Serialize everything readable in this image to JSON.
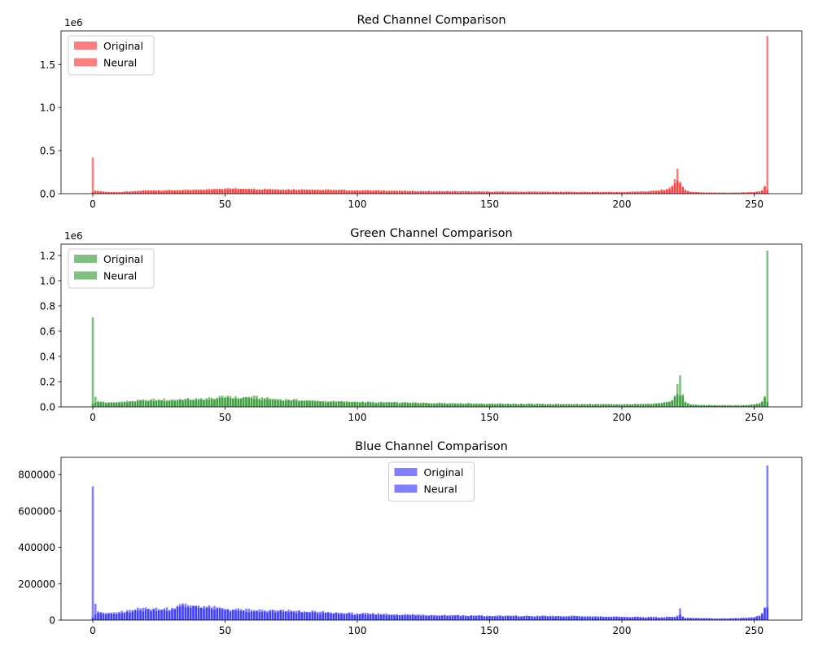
{
  "chart_data": [
    {
      "type": "bar",
      "title": "Red Channel Comparison",
      "xlabel": "",
      "ylabel": "",
      "xlim": [
        -12,
        268
      ],
      "ylim": [
        0,
        1890000
      ],
      "offset_label": "1e6",
      "x_ticks": [
        0,
        50,
        100,
        150,
        200,
        250
      ],
      "y_ticks": [
        0,
        500000,
        1000000,
        1500000
      ],
      "y_tick_labels": [
        "0.0",
        "0.5",
        "1.0",
        "1.5"
      ],
      "legend_position": "upper left",
      "grid": false,
      "series": [
        {
          "name": "Original",
          "color": "#ff0000",
          "alpha": 0.5,
          "anchors": [
            [
              0,
              420000
            ],
            [
              1,
              40000
            ],
            [
              2,
              33000
            ],
            [
              3,
              28000
            ],
            [
              5,
              22000
            ],
            [
              10,
              18000
            ],
            [
              15,
              30000
            ],
            [
              20,
              38000
            ],
            [
              30,
              40000
            ],
            [
              40,
              48000
            ],
            [
              48,
              58000
            ],
            [
              52,
              62000
            ],
            [
              60,
              56000
            ],
            [
              70,
              52000
            ],
            [
              80,
              50000
            ],
            [
              90,
              45000
            ],
            [
              100,
              40000
            ],
            [
              120,
              32000
            ],
            [
              150,
              25000
            ],
            [
              180,
              22000
            ],
            [
              200,
              20000
            ],
            [
              210,
              28000
            ],
            [
              214,
              38000
            ],
            [
              217,
              55000
            ],
            [
              219,
              95000
            ],
            [
              220,
              170000
            ],
            [
              221,
              290000
            ],
            [
              222,
              140000
            ],
            [
              223,
              85000
            ],
            [
              224,
              45000
            ],
            [
              226,
              22000
            ],
            [
              230,
              15000
            ],
            [
              240,
              12000
            ],
            [
              247,
              15000
            ],
            [
              250,
              20000
            ],
            [
              252,
              28000
            ],
            [
              253,
              40000
            ],
            [
              254,
              90000
            ],
            [
              255,
              1830000
            ]
          ],
          "spikes": []
        },
        {
          "name": "Neural",
          "color": "#ff0000",
          "alpha": 0.5,
          "anchors": [
            [
              0,
              20000
            ],
            [
              1,
              28000
            ],
            [
              2,
              30000
            ],
            [
              3,
              24000
            ],
            [
              5,
              20000
            ],
            [
              10,
              15000
            ],
            [
              15,
              26000
            ],
            [
              20,
              34000
            ],
            [
              30,
              36000
            ],
            [
              40,
              42000
            ],
            [
              48,
              52000
            ],
            [
              52,
              55000
            ],
            [
              60,
              50000
            ],
            [
              70,
              46000
            ],
            [
              80,
              44000
            ],
            [
              90,
              40000
            ],
            [
              100,
              36000
            ],
            [
              120,
              29000
            ],
            [
              150,
              22000
            ],
            [
              180,
              20000
            ],
            [
              200,
              18000
            ],
            [
              210,
              24000
            ],
            [
              214,
              32000
            ],
            [
              217,
              45000
            ],
            [
              219,
              75000
            ],
            [
              220,
              120000
            ],
            [
              221,
              150000
            ],
            [
              222,
              120000
            ],
            [
              223,
              70000
            ],
            [
              224,
              38000
            ],
            [
              226,
              20000
            ],
            [
              230,
              14000
            ],
            [
              240,
              11000
            ],
            [
              247,
              14000
            ],
            [
              250,
              18000
            ],
            [
              252,
              24000
            ],
            [
              253,
              35000
            ],
            [
              254,
              80000
            ],
            [
              255,
              40000
            ]
          ],
          "spikes": []
        }
      ]
    },
    {
      "type": "bar",
      "title": "Green Channel Comparison",
      "xlabel": "",
      "ylabel": "",
      "xlim": [
        -12,
        268
      ],
      "ylim": [
        0,
        1290000
      ],
      "offset_label": "1e6",
      "x_ticks": [
        0,
        50,
        100,
        150,
        200,
        250
      ],
      "y_ticks": [
        0,
        200000,
        400000,
        600000,
        800000,
        1000000,
        1200000
      ],
      "y_tick_labels": [
        "0.0",
        "0.2",
        "0.4",
        "0.6",
        "0.8",
        "1.0",
        "1.2"
      ],
      "legend_position": "upper left",
      "grid": false,
      "series": [
        {
          "name": "Original",
          "color": "#008000",
          "alpha": 0.5,
          "anchors": [
            [
              0,
              710000
            ],
            [
              1,
              80000
            ],
            [
              2,
              45000
            ],
            [
              3,
              42000
            ],
            [
              5,
              35000
            ],
            [
              10,
              40000
            ],
            [
              20,
              55000
            ],
            [
              25,
              60000
            ],
            [
              30,
              58000
            ],
            [
              40,
              65000
            ],
            [
              45,
              72000
            ],
            [
              50,
              80000
            ],
            [
              51,
              90000
            ],
            [
              55,
              70000
            ],
            [
              60,
              82000
            ],
            [
              65,
              70000
            ],
            [
              70,
              62000
            ],
            [
              80,
              52000
            ],
            [
              90,
              45000
            ],
            [
              100,
              40000
            ],
            [
              120,
              33000
            ],
            [
              150,
              26000
            ],
            [
              180,
              22000
            ],
            [
              200,
              20000
            ],
            [
              210,
              25000
            ],
            [
              214,
              30000
            ],
            [
              217,
              40000
            ],
            [
              219,
              55000
            ],
            [
              220,
              90000
            ],
            [
              221,
              180000
            ],
            [
              222,
              250000
            ],
            [
              223,
              100000
            ],
            [
              224,
              40000
            ],
            [
              226,
              20000
            ],
            [
              230,
              15000
            ],
            [
              240,
              12000
            ],
            [
              247,
              14000
            ],
            [
              250,
              20000
            ],
            [
              252,
              30000
            ],
            [
              253,
              45000
            ],
            [
              254,
              85000
            ],
            [
              255,
              1240000
            ]
          ],
          "spikes": []
        },
        {
          "name": "Neural",
          "color": "#008000",
          "alpha": 0.5,
          "anchors": [
            [
              0,
              25000
            ],
            [
              1,
              35000
            ],
            [
              2,
              38000
            ],
            [
              3,
              36000
            ],
            [
              5,
              30000
            ],
            [
              10,
              34000
            ],
            [
              20,
              48000
            ],
            [
              25,
              52000
            ],
            [
              30,
              50000
            ],
            [
              40,
              56000
            ],
            [
              45,
              62000
            ],
            [
              50,
              68000
            ],
            [
              51,
              72000
            ],
            [
              55,
              60000
            ],
            [
              60,
              70000
            ],
            [
              65,
              60000
            ],
            [
              70,
              54000
            ],
            [
              80,
              46000
            ],
            [
              90,
              40000
            ],
            [
              100,
              36000
            ],
            [
              120,
              30000
            ],
            [
              150,
              23000
            ],
            [
              180,
              20000
            ],
            [
              200,
              18000
            ],
            [
              210,
              22000
            ],
            [
              214,
              27000
            ],
            [
              217,
              35000
            ],
            [
              219,
              48000
            ],
            [
              220,
              75000
            ],
            [
              221,
              100000
            ],
            [
              222,
              90000
            ],
            [
              223,
              85000
            ],
            [
              224,
              35000
            ],
            [
              226,
              18000
            ],
            [
              230,
              13000
            ],
            [
              240,
              11000
            ],
            [
              247,
              13000
            ],
            [
              250,
              18000
            ],
            [
              252,
              26000
            ],
            [
              253,
              38000
            ],
            [
              254,
              75000
            ],
            [
              255,
              40000
            ]
          ],
          "spikes": []
        }
      ]
    },
    {
      "type": "bar",
      "title": "Blue Channel Comparison",
      "xlabel": "",
      "ylabel": "",
      "xlim": [
        -12,
        268
      ],
      "ylim": [
        0,
        895000
      ],
      "offset_label": "",
      "x_ticks": [
        0,
        50,
        100,
        150,
        200,
        250
      ],
      "y_ticks": [
        0,
        200000,
        400000,
        600000,
        800000
      ],
      "y_tick_labels": [
        "0",
        "200000",
        "400000",
        "600000",
        "800000"
      ],
      "legend_position": "upper center",
      "grid": false,
      "series": [
        {
          "name": "Original",
          "color": "#0000ff",
          "alpha": 0.5,
          "anchors": [
            [
              0,
              735000
            ],
            [
              1,
              90000
            ],
            [
              2,
              48000
            ],
            [
              3,
              44000
            ],
            [
              5,
              38000
            ],
            [
              10,
              45000
            ],
            [
              15,
              55000
            ],
            [
              20,
              70000
            ],
            [
              25,
              60000
            ],
            [
              30,
              68000
            ],
            [
              33,
              88000
            ],
            [
              36,
              82000
            ],
            [
              40,
              80000
            ],
            [
              45,
              70000
            ],
            [
              50,
              62000
            ],
            [
              60,
              55000
            ],
            [
              70,
              52000
            ],
            [
              80,
              48000
            ],
            [
              90,
              42000
            ],
            [
              100,
              36000
            ],
            [
              120,
              30000
            ],
            [
              150,
              24000
            ],
            [
              180,
              22000
            ],
            [
              200,
              18000
            ],
            [
              210,
              17000
            ],
            [
              215,
              16000
            ],
            [
              220,
              18000
            ],
            [
              221,
              25000
            ],
            [
              222,
              65000
            ],
            [
              223,
              20000
            ],
            [
              224,
              12000
            ],
            [
              230,
              10000
            ],
            [
              240,
              9000
            ],
            [
              245,
              12000
            ],
            [
              250,
              16000
            ],
            [
              252,
              25000
            ],
            [
              253,
              38000
            ],
            [
              254,
              70000
            ],
            [
              255,
              850000
            ]
          ],
          "spikes": []
        },
        {
          "name": "Neural",
          "color": "#0000ff",
          "alpha": 0.5,
          "anchors": [
            [
              0,
              15000
            ],
            [
              1,
              30000
            ],
            [
              2,
              40000
            ],
            [
              3,
              38000
            ],
            [
              5,
              33000
            ],
            [
              10,
              38000
            ],
            [
              15,
              46000
            ],
            [
              20,
              58000
            ],
            [
              25,
              52000
            ],
            [
              30,
              58000
            ],
            [
              33,
              72000
            ],
            [
              36,
              70000
            ],
            [
              40,
              68000
            ],
            [
              45,
              60000
            ],
            [
              50,
              54000
            ],
            [
              60,
              48000
            ],
            [
              70,
              46000
            ],
            [
              80,
              42000
            ],
            [
              90,
              37000
            ],
            [
              100,
              32000
            ],
            [
              120,
              27000
            ],
            [
              150,
              21000
            ],
            [
              180,
              19000
            ],
            [
              200,
              16000
            ],
            [
              210,
              15000
            ],
            [
              215,
              14000
            ],
            [
              220,
              16000
            ],
            [
              221,
              20000
            ],
            [
              222,
              30000
            ],
            [
              223,
              18000
            ],
            [
              224,
              11000
            ],
            [
              230,
              9000
            ],
            [
              240,
              8000
            ],
            [
              245,
              11000
            ],
            [
              250,
              14000
            ],
            [
              252,
              22000
            ],
            [
              253,
              34000
            ],
            [
              254,
              65000
            ],
            [
              255,
              70000
            ]
          ],
          "spikes": []
        }
      ]
    }
  ]
}
